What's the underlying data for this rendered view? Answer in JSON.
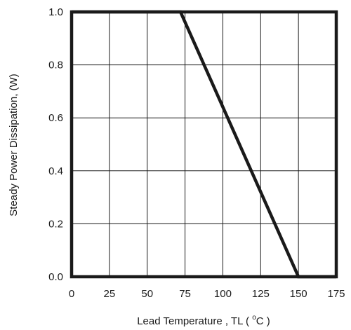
{
  "chart_data": {
    "type": "line",
    "xlabel": "Lead Temperature , TL ( °C )",
    "ylabel": "Steady Power Dissipation, (W)",
    "xlim": [
      0,
      175
    ],
    "ylim": [
      0.0,
      1.0
    ],
    "x_ticks": [
      0,
      25,
      50,
      75,
      100,
      125,
      150,
      175
    ],
    "y_ticks": [
      0.0,
      0.2,
      0.4,
      0.6,
      0.8,
      1.0
    ],
    "x_tick_labels": [
      "0",
      "25",
      "50",
      "75",
      "100",
      "125",
      "150",
      "175"
    ],
    "y_tick_labels": [
      "0.0",
      "0.2",
      "0.4",
      "0.6",
      "0.8",
      "1.0"
    ],
    "grid": true,
    "series": [
      {
        "color": "#1a1a1a",
        "points": [
          {
            "x": 0,
            "y": 1.0
          },
          {
            "x": 72,
            "y": 1.0
          },
          {
            "x": 150,
            "y": 0.0
          },
          {
            "x": 175,
            "y": 0.0
          }
        ]
      }
    ]
  }
}
